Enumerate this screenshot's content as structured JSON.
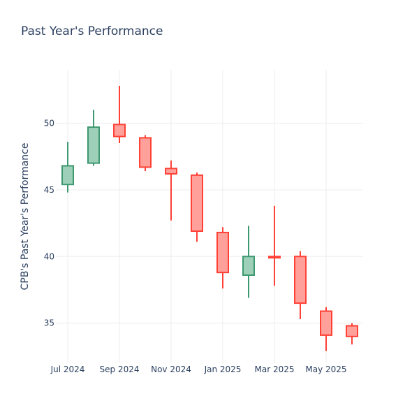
{
  "chart_data": {
    "type": "candlestick",
    "title": "Past Year's Performance",
    "xlabel": "",
    "ylabel": "CPB's Past Year's Performance",
    "ylim": [
      32,
      54
    ],
    "yticks": [
      35,
      40,
      45,
      50
    ],
    "xticks": [
      {
        "label": "Jul 2024",
        "month": 0
      },
      {
        "label": "Sep 2024",
        "month": 2
      },
      {
        "label": "Nov 2024",
        "month": 4
      },
      {
        "label": "Jan 2025",
        "month": 6
      },
      {
        "label": "Mar 2025",
        "month": 8
      },
      {
        "label": "May 2025",
        "month": 10
      }
    ],
    "grid": true,
    "increasing_color": "#3d9970",
    "increasing_fill": "#9ecfb8",
    "decreasing_color": "#ff4136",
    "decreasing_fill": "#ffa09b",
    "candles": [
      {
        "month": 0,
        "open": 45.4,
        "high": 48.6,
        "low": 44.8,
        "close": 46.8
      },
      {
        "month": 1,
        "open": 47.0,
        "high": 51.0,
        "low": 46.8,
        "close": 49.7
      },
      {
        "month": 2,
        "open": 49.9,
        "high": 52.8,
        "low": 48.5,
        "close": 49.0
      },
      {
        "month": 3,
        "open": 48.9,
        "high": 49.1,
        "low": 46.4,
        "close": 46.7
      },
      {
        "month": 4,
        "open": 46.6,
        "high": 47.2,
        "low": 42.7,
        "close": 46.2
      },
      {
        "month": 5,
        "open": 46.1,
        "high": 46.3,
        "low": 41.1,
        "close": 41.9
      },
      {
        "month": 6,
        "open": 41.8,
        "high": 42.2,
        "low": 37.6,
        "close": 38.8
      },
      {
        "month": 7,
        "open": 38.6,
        "high": 42.3,
        "low": 36.9,
        "close": 40.0
      },
      {
        "month": 8,
        "open": 40.0,
        "high": 43.8,
        "low": 37.8,
        "close": 39.9
      },
      {
        "month": 9,
        "open": 40.0,
        "high": 40.4,
        "low": 35.3,
        "close": 36.5
      },
      {
        "month": 10,
        "open": 35.9,
        "high": 36.2,
        "low": 32.9,
        "close": 34.1
      },
      {
        "month": 11,
        "open": 34.8,
        "high": 35.0,
        "low": 33.4,
        "close": 34.0
      }
    ]
  }
}
